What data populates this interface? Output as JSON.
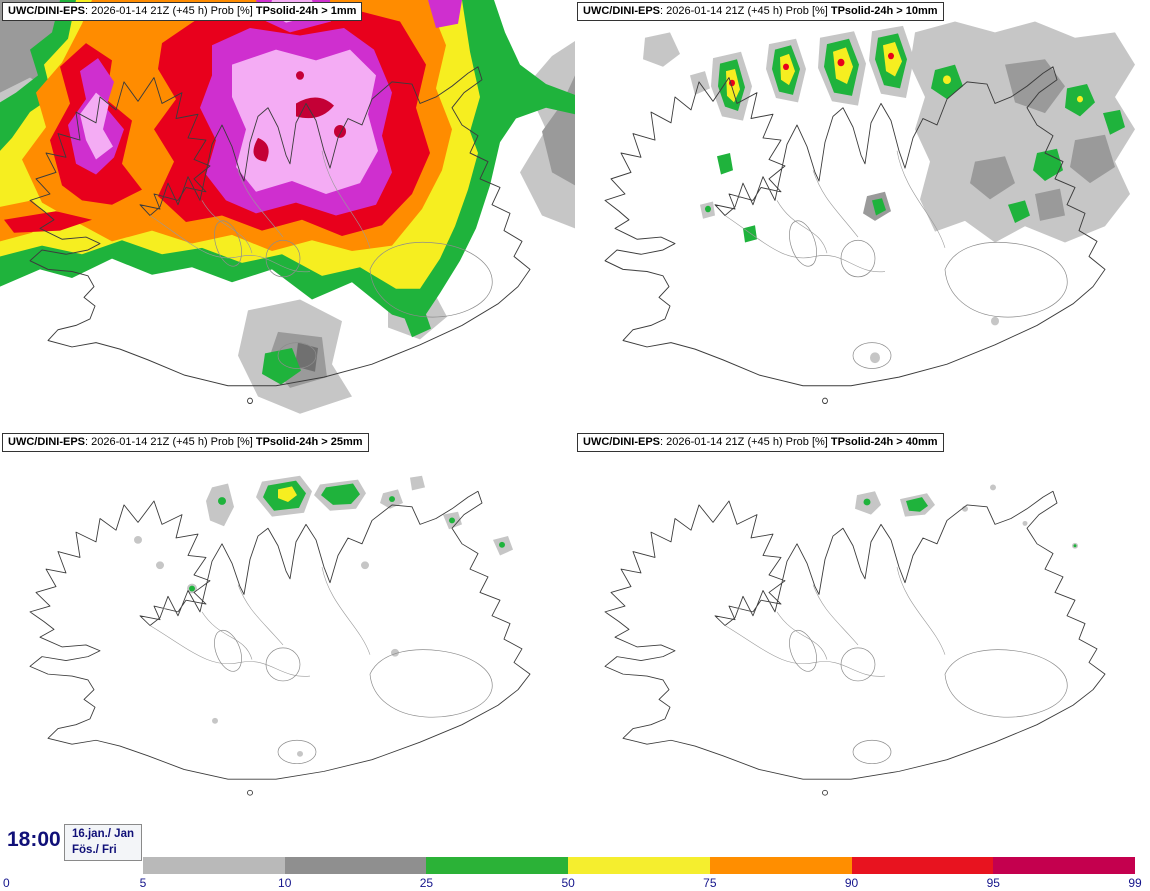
{
  "panels": [
    {
      "model": "UWC/DINI-EPS",
      "meta": ": 2026-01-14 21Z (+45 h) Prob [%]",
      "param": "TPsolid-24h > 1mm"
    },
    {
      "model": "UWC/DINI-EPS",
      "meta": ": 2026-01-14 21Z (+45 h) Prob [%]",
      "param": "TPsolid-24h > 10mm"
    },
    {
      "model": "UWC/DINI-EPS",
      "meta": ": 2026-01-14 21Z (+45 h) Prob [%]",
      "param": "TPsolid-24h > 25mm"
    },
    {
      "model": "UWC/DINI-EPS",
      "meta": ": 2026-01-14 21Z (+45 h) Prob [%]",
      "param": "TPsolid-24h > 40mm"
    }
  ],
  "footer": {
    "time": "18:00",
    "date_line1": "16.jan./ Jan",
    "date_line2": "Fös./ Fri"
  },
  "colorbar": {
    "ticks": [
      "0",
      "5",
      "10",
      "25",
      "50",
      "75",
      "90",
      "95",
      "99"
    ],
    "colors": [
      "#b9b9b9",
      "#8f8f8f",
      "#2bb237",
      "#f5ee2e",
      "#ff8e00",
      "#e8131f",
      "#c4004e"
    ]
  },
  "map_colors": {
    "gray_light": "#c6c6c6",
    "gray": "#9a9a9a",
    "gray_dark": "#707070",
    "green": "#1fb33c",
    "yellow": "#f6ee20",
    "orange": "#ff8c00",
    "red": "#e8001c",
    "magenta": "#cf2fcf",
    "pink": "#f4acf4",
    "crimson": "#c40036",
    "text_navy": "#101078"
  }
}
